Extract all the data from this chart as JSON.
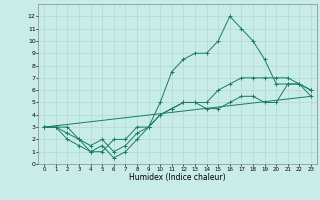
{
  "title": "",
  "xlabel": "Humidex (Indice chaleur)",
  "bg_color": "#c8ece8",
  "grid_color": "#b0d8d0",
  "line_color": "#1a7a6a",
  "xlim": [
    -0.5,
    23.5
  ],
  "ylim": [
    0,
    13
  ],
  "xticks": [
    0,
    1,
    2,
    3,
    4,
    5,
    6,
    7,
    8,
    9,
    10,
    11,
    12,
    13,
    14,
    15,
    16,
    17,
    18,
    19,
    20,
    21,
    22,
    23
  ],
  "yticks": [
    0,
    1,
    2,
    3,
    4,
    5,
    6,
    7,
    8,
    9,
    10,
    11,
    12
  ],
  "series1_x": [
    0,
    1,
    2,
    3,
    4,
    5,
    6,
    7,
    8,
    9,
    10,
    11,
    12,
    13,
    14,
    15,
    16,
    17,
    18,
    19,
    20,
    21,
    22,
    23
  ],
  "series1_y": [
    3,
    3,
    3,
    2,
    1,
    1,
    2,
    2,
    3,
    3,
    4,
    4.5,
    5,
    5,
    4.5,
    4.5,
    5,
    5.5,
    5.5,
    5,
    5,
    6.5,
    6.5,
    5.5
  ],
  "series2_x": [
    0,
    1,
    2,
    3,
    4,
    5,
    6,
    7,
    8,
    9,
    10,
    11,
    12,
    13,
    14,
    15,
    16,
    17,
    18,
    19,
    20,
    21,
    22,
    23
  ],
  "series2_y": [
    3,
    3,
    2,
    1.5,
    1,
    1.5,
    0.5,
    1,
    2,
    3,
    5,
    7.5,
    8.5,
    9,
    9,
    10,
    12,
    11,
    10,
    8.5,
    6.5,
    6.5,
    6.5,
    6
  ],
  "series3_x": [
    0,
    1,
    2,
    3,
    4,
    5,
    6,
    7,
    8,
    9,
    10,
    11,
    12,
    13,
    14,
    15,
    16,
    17,
    18,
    19,
    20,
    21,
    22,
    23
  ],
  "series3_y": [
    3,
    3,
    2.5,
    2,
    1.5,
    2,
    1,
    1.5,
    2.5,
    3,
    4,
    4.5,
    5,
    5,
    5,
    6,
    6.5,
    7,
    7,
    7,
    7,
    7,
    6.5,
    6
  ],
  "series4_x": [
    0,
    23
  ],
  "series4_y": [
    3,
    5.5
  ]
}
